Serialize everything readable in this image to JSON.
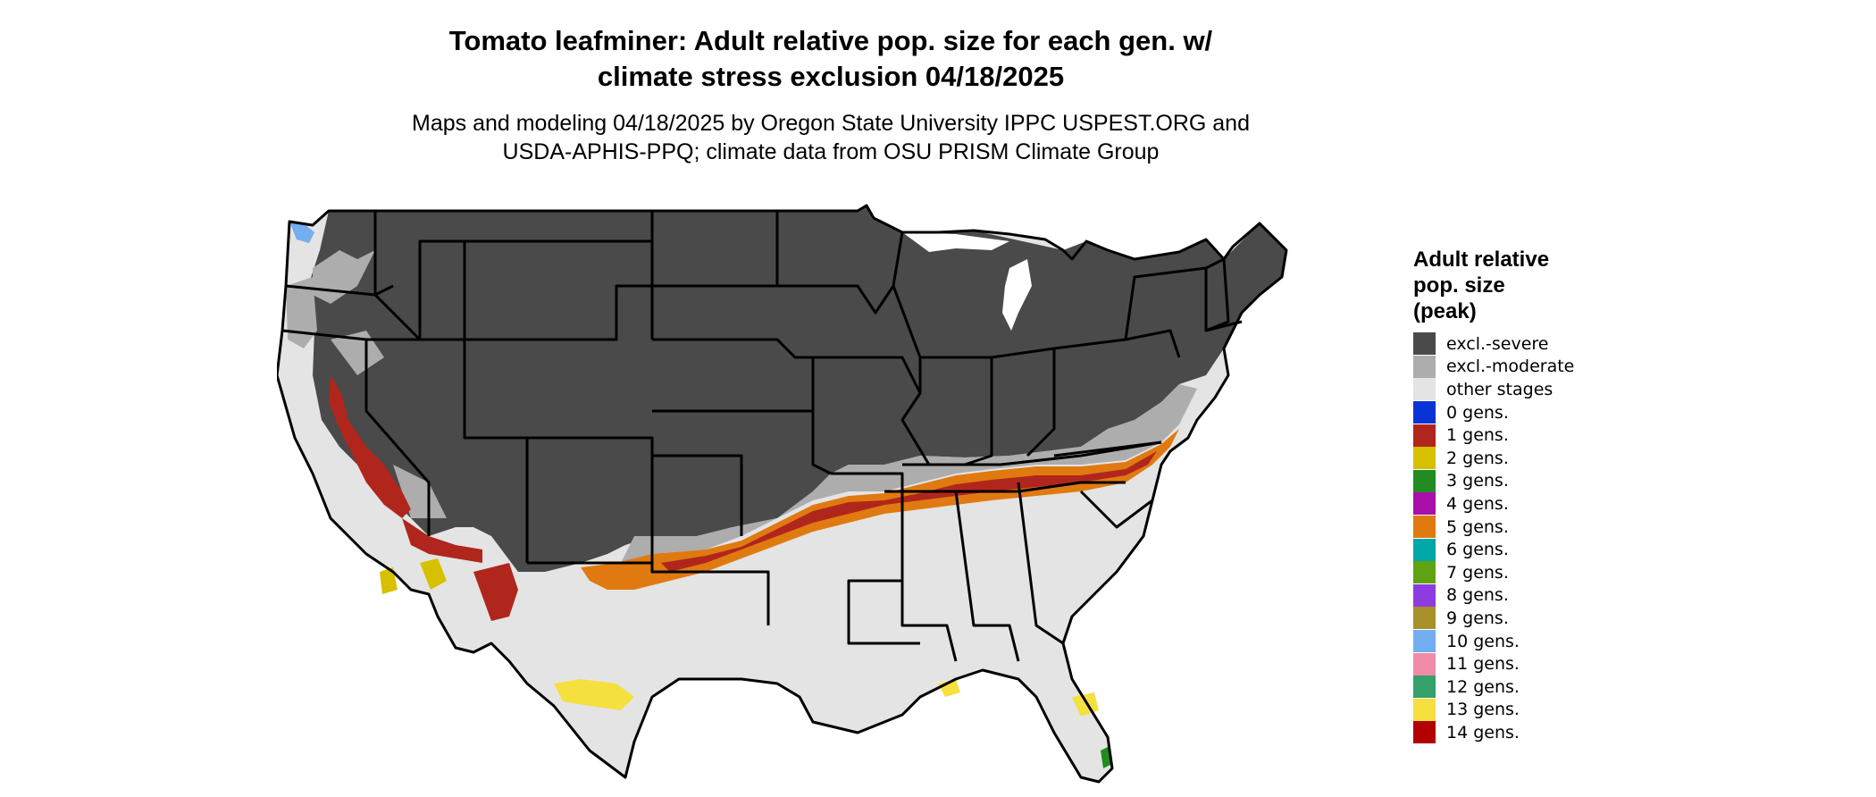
{
  "title_line1": "Tomato leafminer: Adult relative pop. size for each gen. w/",
  "title_line2": "climate stress exclusion 04/18/2025",
  "subtitle_line1": "Maps and modeling 04/18/2025 by Oregon State University IPPC USPEST.ORG and",
  "subtitle_line2": "USDA-APHIS-PPQ; climate data from OSU PRISM Climate Group",
  "legend": {
    "title_lines": [
      "Adult relative",
      "pop. size",
      "(peak)"
    ],
    "items": [
      {
        "label": "excl.-severe",
        "color": "#4a4a4a"
      },
      {
        "label": "excl.-moderate",
        "color": "#adadad"
      },
      {
        "label": "other stages",
        "color": "#e4e4e4"
      },
      {
        "label": "0 gens.",
        "color": "#0a33d6"
      },
      {
        "label": "1 gens.",
        "color": "#b0261c"
      },
      {
        "label": "2 gens.",
        "color": "#d6c000"
      },
      {
        "label": "3 gens.",
        "color": "#228b22"
      },
      {
        "label": "4 gens.",
        "color": "#a80ea8"
      },
      {
        "label": "5 gens.",
        "color": "#e07a10"
      },
      {
        "label": "6 gens.",
        "color": "#00a8a8"
      },
      {
        "label": "7 gens.",
        "color": "#5fa312"
      },
      {
        "label": "8 gens.",
        "color": "#8e3be0"
      },
      {
        "label": "9 gens.",
        "color": "#a8902a"
      },
      {
        "label": "10 gens.",
        "color": "#72aef0"
      },
      {
        "label": "11 gens.",
        "color": "#f08ca8"
      },
      {
        "label": "12 gens.",
        "color": "#35a06a"
      },
      {
        "label": "13 gens.",
        "color": "#f5e040"
      },
      {
        "label": "14 gens.",
        "color": "#b20000"
      }
    ]
  },
  "colors": {
    "severe": "#4a4a4a",
    "moderate": "#adadad",
    "other": "#e4e4e4",
    "gen1": "#b0261c",
    "gen2": "#d6c000",
    "gen5": "#e07a10",
    "gen13": "#f5e040",
    "gen10": "#72aef0",
    "gen3": "#228b22",
    "border": "#000000"
  }
}
